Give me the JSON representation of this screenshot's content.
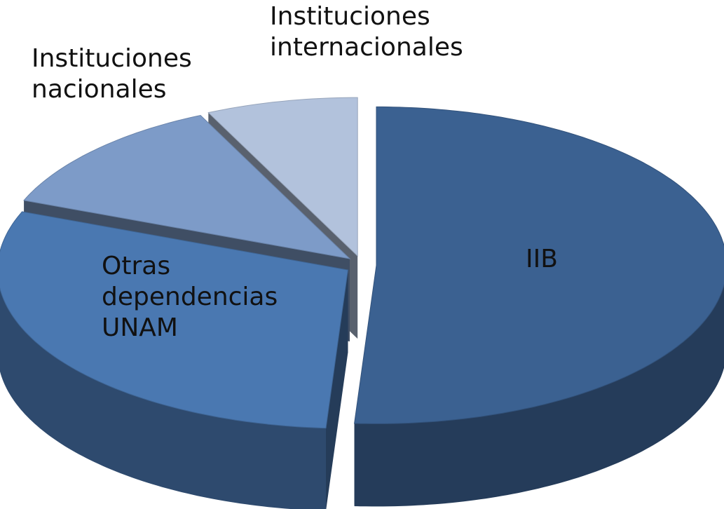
{
  "chart_data": {
    "type": "pie",
    "categories": [
      "IIB",
      "Otras dependencias UNAM",
      "Instituciones nacionales",
      "Instituciones internacionales"
    ],
    "values": [
      51,
      30,
      12,
      7
    ],
    "colors": [
      "#3b6191",
      "#4a78b1",
      "#7d9bc8",
      "#b2c2dc"
    ]
  }
}
